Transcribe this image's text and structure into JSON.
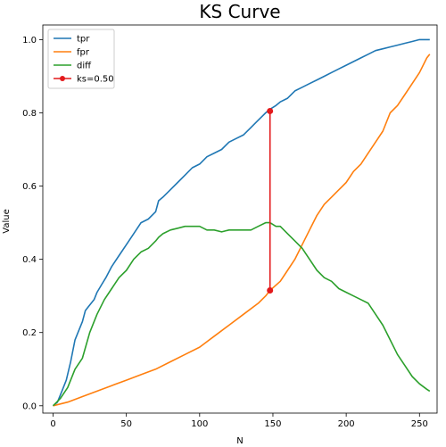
{
  "chart_data": {
    "type": "line",
    "title": "KS Curve",
    "xlabel": "N",
    "ylabel": "Value",
    "xlim": [
      -7,
      262
    ],
    "ylim": [
      -0.02,
      1.04
    ],
    "xticks": [
      0,
      50,
      100,
      150,
      200,
      250
    ],
    "xtick_labels": [
      "0",
      "50",
      "100",
      "150",
      "200",
      "250"
    ],
    "yticks": [
      0.0,
      0.2,
      0.4,
      0.6,
      0.8,
      1.0
    ],
    "ytick_labels": [
      "0.0",
      "0.2",
      "0.4",
      "0.6",
      "0.8",
      "1.0"
    ],
    "grid": false,
    "legend_position": "upper-left",
    "series": [
      {
        "name": "tpr",
        "color": "#1f77b4",
        "x": [
          0,
          3,
          6,
          9,
          12,
          15,
          18,
          20,
          22,
          24,
          26,
          28,
          30,
          33,
          36,
          40,
          45,
          50,
          55,
          60,
          65,
          70,
          72,
          75,
          80,
          85,
          90,
          95,
          100,
          105,
          110,
          115,
          120,
          125,
          130,
          135,
          140,
          145,
          148,
          152,
          155,
          160,
          165,
          170,
          175,
          180,
          185,
          190,
          195,
          200,
          205,
          210,
          215,
          220,
          225,
          230,
          235,
          240,
          245,
          250,
          255,
          257
        ],
        "y": [
          0.0,
          0.01,
          0.04,
          0.07,
          0.12,
          0.18,
          0.21,
          0.23,
          0.26,
          0.27,
          0.28,
          0.29,
          0.31,
          0.33,
          0.35,
          0.38,
          0.41,
          0.44,
          0.47,
          0.5,
          0.51,
          0.53,
          0.56,
          0.57,
          0.59,
          0.61,
          0.63,
          0.65,
          0.66,
          0.68,
          0.69,
          0.7,
          0.72,
          0.73,
          0.74,
          0.76,
          0.78,
          0.8,
          0.81,
          0.82,
          0.83,
          0.84,
          0.86,
          0.87,
          0.88,
          0.89,
          0.9,
          0.91,
          0.92,
          0.93,
          0.94,
          0.95,
          0.96,
          0.97,
          0.975,
          0.98,
          0.985,
          0.99,
          0.995,
          1.0,
          1.0,
          1.0
        ]
      },
      {
        "name": "fpr",
        "color": "#ff7f0e",
        "x": [
          0,
          10,
          20,
          30,
          40,
          50,
          60,
          70,
          80,
          90,
          100,
          110,
          120,
          130,
          140,
          145,
          148,
          155,
          160,
          165,
          170,
          175,
          180,
          185,
          190,
          195,
          200,
          205,
          210,
          215,
          220,
          225,
          230,
          235,
          240,
          245,
          250,
          255,
          257
        ],
        "y": [
          0.0,
          0.01,
          0.025,
          0.04,
          0.055,
          0.07,
          0.085,
          0.1,
          0.12,
          0.14,
          0.16,
          0.19,
          0.22,
          0.25,
          0.28,
          0.3,
          0.315,
          0.34,
          0.37,
          0.4,
          0.44,
          0.48,
          0.52,
          0.55,
          0.57,
          0.59,
          0.61,
          0.64,
          0.66,
          0.69,
          0.72,
          0.75,
          0.8,
          0.82,
          0.85,
          0.88,
          0.91,
          0.95,
          0.96
        ]
      },
      {
        "name": "diff",
        "color": "#2ca02c",
        "x": [
          0,
          5,
          10,
          15,
          20,
          25,
          30,
          35,
          40,
          45,
          50,
          55,
          60,
          65,
          70,
          72,
          75,
          80,
          85,
          90,
          95,
          100,
          105,
          110,
          115,
          120,
          125,
          130,
          135,
          140,
          145,
          148,
          152,
          155,
          160,
          165,
          170,
          175,
          180,
          185,
          190,
          195,
          200,
          205,
          210,
          215,
          220,
          225,
          230,
          235,
          240,
          245,
          250,
          255,
          257
        ],
        "y": [
          0.0,
          0.02,
          0.05,
          0.1,
          0.13,
          0.2,
          0.25,
          0.29,
          0.32,
          0.35,
          0.37,
          0.4,
          0.42,
          0.43,
          0.45,
          0.46,
          0.47,
          0.48,
          0.485,
          0.49,
          0.49,
          0.49,
          0.48,
          0.48,
          0.475,
          0.48,
          0.48,
          0.48,
          0.48,
          0.49,
          0.5,
          0.5,
          0.49,
          0.49,
          0.47,
          0.45,
          0.43,
          0.4,
          0.37,
          0.35,
          0.34,
          0.32,
          0.31,
          0.3,
          0.29,
          0.28,
          0.25,
          0.22,
          0.18,
          0.14,
          0.11,
          0.08,
          0.06,
          0.045,
          0.04
        ]
      },
      {
        "name": "ks=0.50",
        "color": "#e31a1c",
        "marker": "circle",
        "x": [
          148,
          148
        ],
        "y": [
          0.805,
          0.315
        ]
      }
    ]
  }
}
